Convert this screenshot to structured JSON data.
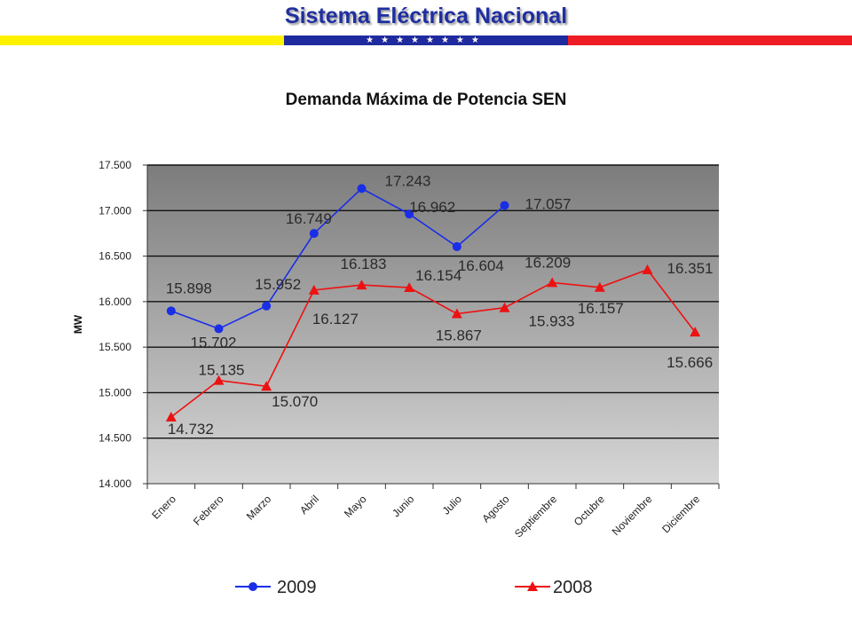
{
  "header": {
    "title": "Sistema Eléctrica Nacional",
    "stars": "★★★★★★★★",
    "colors": {
      "yellow": "#fff200",
      "blue": "#1f2a9e",
      "red": "#ee1c25",
      "title": "#1f2fa0"
    }
  },
  "chart_data": {
    "type": "line",
    "title": "Demanda Máxima de Potencia SEN",
    "ylabel": "MW",
    "xlabel": "",
    "ylim": [
      14000,
      17500
    ],
    "ytick_step": 500,
    "ytick_labels": [
      "14.000",
      "14.500",
      "15.000",
      "15.500",
      "16.000",
      "16.500",
      "17.000",
      "17.500"
    ],
    "grid": true,
    "legend_position": "bottom",
    "categories": [
      "Enero",
      "Febrero",
      "Marzo",
      "Abril",
      "Mayo",
      "Junio",
      "Julio",
      "Agosto",
      "Septiembre",
      "Octubre",
      "Noviembre",
      "Diciembre"
    ],
    "series": [
      {
        "name": "2009",
        "color": "#1a2ee8",
        "marker": "circle",
        "values": [
          15898,
          15702,
          15952,
          16749,
          17243,
          16962,
          16604,
          17057,
          null,
          null,
          null,
          null
        ],
        "labels": [
          "15.898",
          "15.702",
          "15.952",
          "16.749",
          "17.243",
          "16.962",
          "16.604",
          "17.057",
          "",
          "",
          "",
          ""
        ]
      },
      {
        "name": "2008",
        "color": "#ee1111",
        "marker": "triangle",
        "values": [
          14732,
          15135,
          15070,
          16127,
          16183,
          16154,
          15867,
          15933,
          16209,
          16157,
          16351,
          15666
        ],
        "labels": [
          "14.732",
          "15.135",
          "15.070",
          "16.127",
          "16.183",
          "16.154",
          "15.867",
          "15.933",
          "16.209",
          "16.157",
          "16.351",
          "15.666"
        ]
      }
    ]
  }
}
